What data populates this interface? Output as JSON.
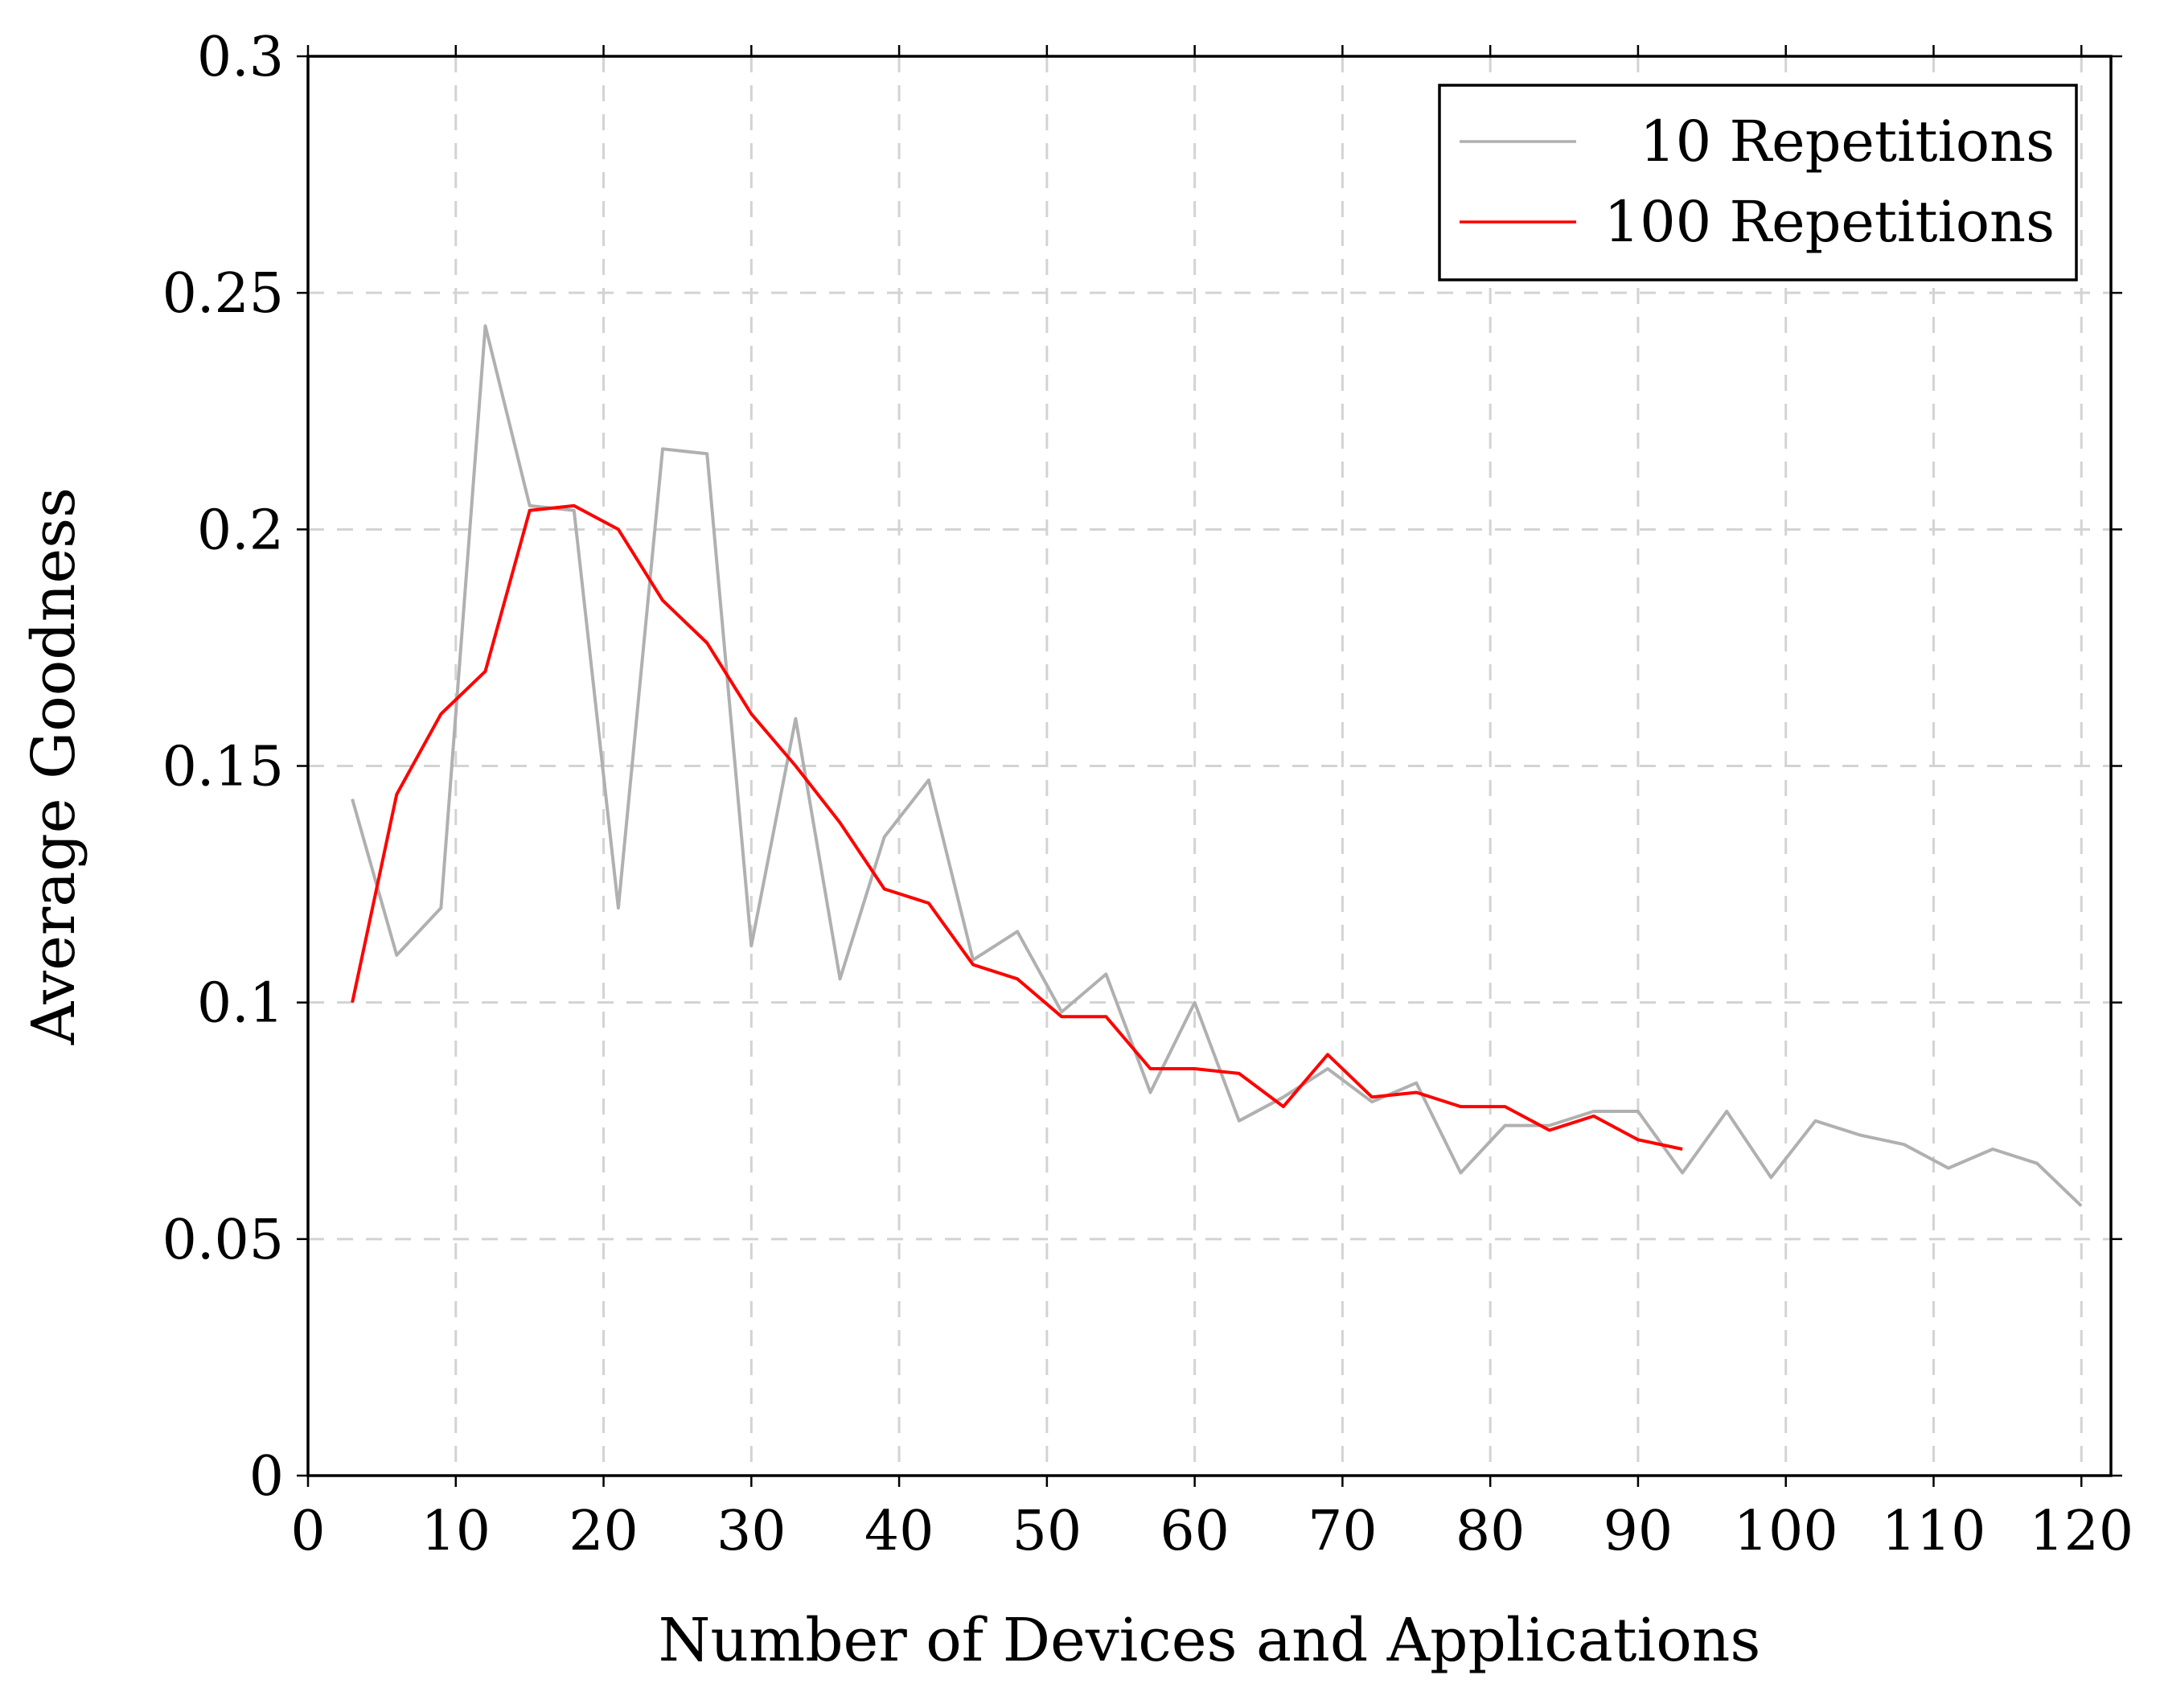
{
  "chart_data": {
    "type": "line",
    "xlabel": "Number of Devices and Applications",
    "ylabel": "Average Goodness",
    "xlim": [
      0,
      122
    ],
    "ylim": [
      0,
      0.3
    ],
    "xticks": [
      0,
      10,
      20,
      30,
      40,
      50,
      60,
      70,
      80,
      90,
      100,
      110,
      120
    ],
    "xtick_labels": [
      "0",
      "10",
      "20",
      "30",
      "40",
      "50",
      "60",
      "70",
      "80",
      "90",
      "100",
      "110",
      "120"
    ],
    "yticks": [
      0,
      0.05,
      0.1,
      0.15,
      0.2,
      0.25,
      0.3
    ],
    "ytick_labels": [
      "0",
      "0.05",
      "0.1",
      "0.15",
      "0.2",
      "0.25",
      "0.3"
    ],
    "grid": true,
    "legend_position": "top-right",
    "series": [
      {
        "name": "10 Repetitions",
        "color": "#b0b0b0",
        "x": [
          3,
          6,
          9,
          12,
          15,
          18,
          21,
          24,
          27,
          30,
          33,
          36,
          39,
          42,
          45,
          48,
          51,
          54,
          57,
          60,
          63,
          66,
          69,
          72,
          75,
          78,
          81,
          84,
          87,
          90,
          93,
          96,
          99,
          102,
          105,
          108,
          111,
          114,
          117,
          120
        ],
        "y": [
          0.143,
          0.11,
          0.12,
          0.243,
          0.205,
          0.204,
          0.12,
          0.217,
          0.216,
          0.112,
          0.16,
          0.105,
          0.135,
          0.147,
          0.109,
          0.115,
          0.098,
          0.106,
          0.081,
          0.1,
          0.075,
          0.08,
          0.086,
          0.079,
          0.083,
          0.064,
          0.074,
          0.074,
          0.077,
          0.077,
          0.064,
          0.077,
          0.063,
          0.075,
          0.072,
          0.07,
          0.065,
          0.069,
          0.066,
          0.057
        ]
      },
      {
        "name": "100 Repetitions",
        "color": "#ff0000",
        "x": [
          3,
          6,
          9,
          12,
          15,
          18,
          21,
          24,
          27,
          30,
          33,
          36,
          39,
          42,
          45,
          48,
          51,
          54,
          57,
          60,
          63,
          66,
          69,
          72,
          75,
          78,
          81,
          84,
          87,
          90,
          93
        ],
        "y": [
          0.1,
          0.144,
          0.161,
          0.17,
          0.204,
          0.205,
          0.2,
          0.185,
          0.176,
          0.161,
          0.15,
          0.138,
          0.124,
          0.121,
          0.108,
          0.105,
          0.097,
          0.097,
          0.086,
          0.086,
          0.085,
          0.078,
          0.089,
          0.08,
          0.081,
          0.078,
          0.078,
          0.073,
          0.076,
          0.071,
          0.069
        ]
      }
    ]
  }
}
